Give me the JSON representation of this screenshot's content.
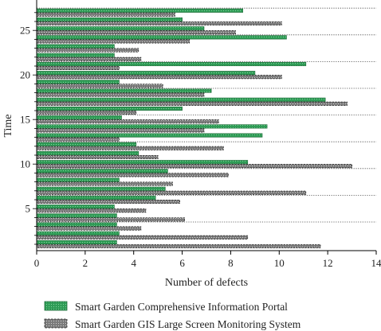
{
  "chart_data": {
    "type": "bar",
    "orientation": "horizontal",
    "xlabel": "Number of defects",
    "ylabel": "Time",
    "xlim": [
      0,
      14
    ],
    "xticks": [
      "0",
      "2",
      "4",
      "6",
      "8",
      "10",
      "12",
      "14"
    ],
    "yticks": [
      "5",
      "10",
      "15",
      "20",
      "25"
    ],
    "ylim": [
      0.5,
      27.5
    ],
    "grid": "dotted separator lines between groups of three",
    "legend_position": "bottom",
    "series": [
      {
        "name": "Smart Garden Comprehensive Information Portal",
        "color": "#2e9b55",
        "pattern": "green-dots",
        "values": [
          3.3,
          3.4,
          3.3,
          3.3,
          3.2,
          4.9,
          5.3,
          3.4,
          5.4,
          8.7,
          4.2,
          4.1,
          9.3,
          9.5,
          3.5,
          6.0,
          11.9,
          7.2,
          3.4,
          9.0,
          11.1,
          3.2,
          3.2,
          10.3,
          6.9,
          6.0,
          8.5
        ]
      },
      {
        "name": "Smart Garden GIS Large Screen Monitoring System",
        "color": "#808080",
        "pattern": "gray-dots",
        "values": [
          11.7,
          8.7,
          4.3,
          6.1,
          4.5,
          5.9,
          11.1,
          5.6,
          7.9,
          13.0,
          5.0,
          7.7,
          3.4,
          6.9,
          7.5,
          4.1,
          12.8,
          6.9,
          5.2,
          10.1,
          3.4,
          4.3,
          4.2,
          6.3,
          8.2,
          10.1,
          5.7
        ]
      }
    ]
  }
}
